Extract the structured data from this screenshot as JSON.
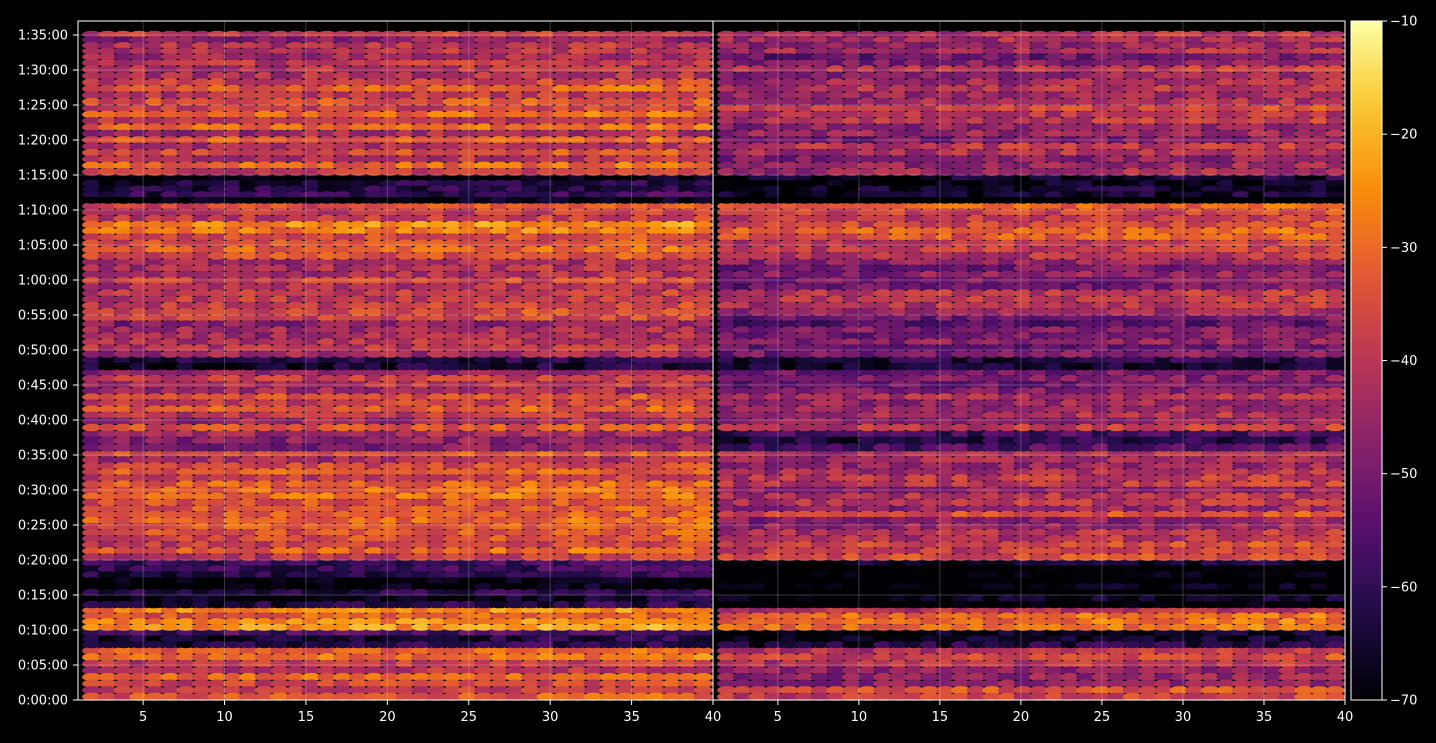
{
  "chart_data": {
    "type": "heatmap",
    "title": "",
    "xlabel": "",
    "ylabel": "",
    "panels": [
      {
        "name": "",
        "x_ticks": [
          5,
          10,
          15,
          20,
          25,
          30,
          35,
          40
        ],
        "x_range": [
          1,
          40
        ]
      },
      {
        "name": "",
        "x_ticks": [
          5,
          10,
          15,
          20,
          25,
          30,
          35,
          40
        ],
        "x_range": [
          1,
          40
        ]
      }
    ],
    "y_ticks": [
      "0:00:00",
      "0:05:00",
      "0:10:00",
      "0:15:00",
      "0:20:00",
      "0:25:00",
      "0:30:00",
      "0:35:00",
      "0:40:00",
      "0:45:00",
      "0:50:00",
      "0:55:00",
      "1:00:00",
      "1:05:00",
      "1:10:00",
      "1:15:00",
      "1:20:00",
      "1:25:00",
      "1:30:00",
      "1:35:00"
    ],
    "y_range_seconds": [
      0,
      5820
    ],
    "colorbar": {
      "colormap": "inferno",
      "min": -70,
      "max": -10,
      "ticks": [
        "−10",
        "−20",
        "−30",
        "−40",
        "−50",
        "−60",
        "−70"
      ],
      "tick_values": [
        -10,
        -20,
        -30,
        -40,
        -50,
        -60,
        -70
      ]
    },
    "grid": true,
    "background": "#000000",
    "grid_color": "#ffffff",
    "bands_minutes": [
      {
        "from": 0.0,
        "to": 7.5,
        "level": -36
      },
      {
        "from": 7.5,
        "to": 10.0,
        "level": -62
      },
      {
        "from": 10.0,
        "to": 13.2,
        "level": -32
      },
      {
        "from": 13.2,
        "to": 20.0,
        "level": -66
      },
      {
        "from": 20.0,
        "to": 27.8,
        "level": -37
      },
      {
        "from": 27.8,
        "to": 35.6,
        "level": -38
      },
      {
        "from": 35.6,
        "to": 38.5,
        "level": -52
      },
      {
        "from": 38.5,
        "to": 47.2,
        "level": -41
      },
      {
        "from": 47.2,
        "to": 49.0,
        "level": -60
      },
      {
        "from": 49.0,
        "to": 55.0,
        "level": -44
      },
      {
        "from": 55.0,
        "to": 63.0,
        "level": -40
      },
      {
        "from": 63.0,
        "to": 71.0,
        "level": -34
      },
      {
        "from": 71.0,
        "to": 75.0,
        "level": -67
      },
      {
        "from": 75.0,
        "to": 85.0,
        "level": -39
      },
      {
        "from": 85.0,
        "to": 91.5,
        "level": -37
      },
      {
        "from": 91.5,
        "to": 95.5,
        "level": -42
      }
    ],
    "right_panel_offset_db": -6
  }
}
